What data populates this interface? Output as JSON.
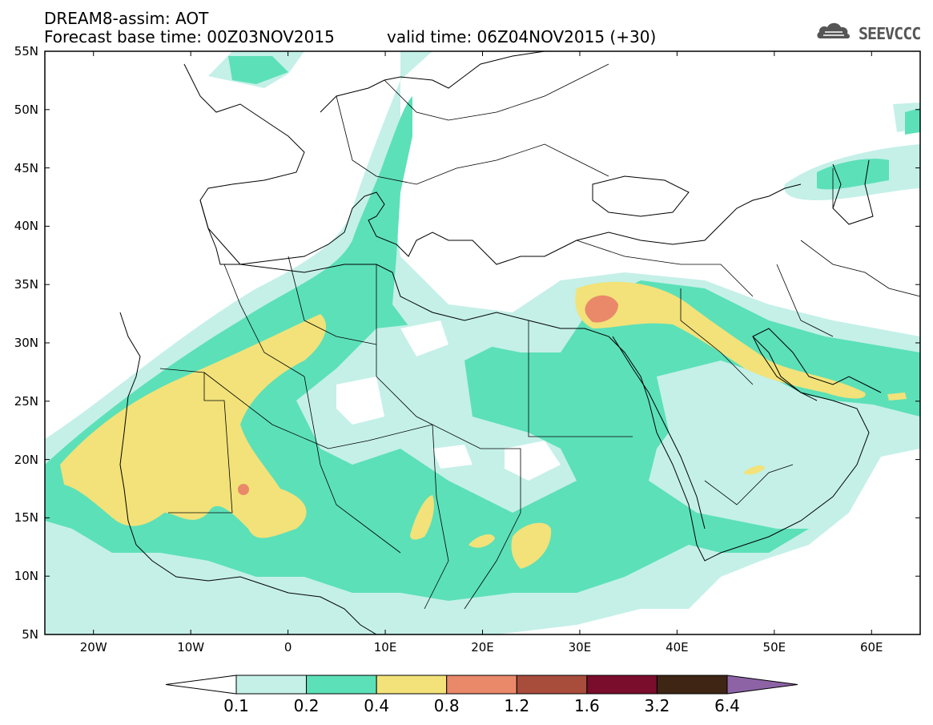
{
  "header": {
    "title": "DREAM8-assim: AOT",
    "base_time": "Forecast base time: 00Z03NOV2015",
    "valid_time": "valid time: 06Z04NOV2015 (+30)"
  },
  "logo": {
    "text": "SEEVCCC",
    "icon": "cloud-logo-icon"
  },
  "map": {
    "lat_labels": [
      "55N",
      "50N",
      "45N",
      "40N",
      "35N",
      "30N",
      "25N",
      "20N",
      "15N",
      "10N",
      "5N"
    ],
    "lon_labels": [
      "20W",
      "10W",
      "0",
      "10E",
      "20E",
      "30E",
      "40E",
      "50E",
      "60E"
    ],
    "lat_range": [
      5,
      55
    ],
    "lon_range": [
      -25,
      65
    ]
  },
  "colorbar": {
    "labels": [
      "0.1",
      "0.2",
      "0.4",
      "0.8",
      "1.2",
      "1.6",
      "3.2",
      "6.4"
    ],
    "colors": [
      "#ffffff",
      "#c4f0e8",
      "#5ce0b8",
      "#f2e279",
      "#e9896a",
      "#a84c3c",
      "#7a0c2c",
      "#3e2514",
      "#8d63a6"
    ]
  }
}
